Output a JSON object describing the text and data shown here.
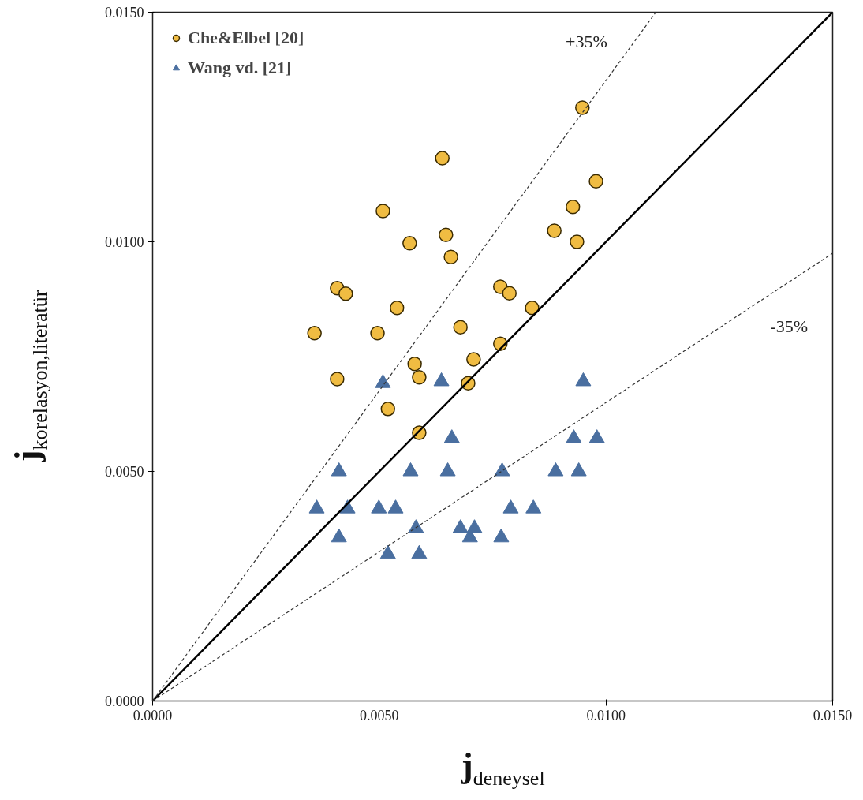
{
  "chart_data": {
    "type": "scatter",
    "xlabel": "j$_{deneysel}$",
    "ylabel": "j$_{korelasyon,literatür}$",
    "xlim": [
      0,
      0.015
    ],
    "ylim": [
      0,
      0.015
    ],
    "xticks": [
      {
        "value": 0,
        "label": "0.0000"
      },
      {
        "value": 0.005,
        "label": "0.0050"
      },
      {
        "value": 0.01,
        "label": "0.0100"
      },
      {
        "value": 0.015,
        "label": "0.0150"
      }
    ],
    "yticks": [
      {
        "value": 0,
        "label": "0.0000"
      },
      {
        "value": 0.005,
        "label": "0.0050"
      },
      {
        "value": 0.01,
        "label": "0.0100"
      },
      {
        "value": 0.015,
        "label": "0.0150"
      }
    ],
    "grid": false,
    "legend": "top left",
    "series": [
      {
        "name": "Che&Elbel [20]",
        "color": "#f0bc42",
        "marker": "circle",
        "x": [
          0.00357,
          0.00407,
          0.00426,
          0.00407,
          0.00508,
          0.00496,
          0.00539,
          0.00567,
          0.00519,
          0.00578,
          0.00588,
          0.00588,
          0.00639,
          0.00647,
          0.00658,
          0.00679,
          0.00708,
          0.00696,
          0.00767,
          0.00787,
          0.00837,
          0.00767,
          0.00886,
          0.00927,
          0.00936,
          0.00978,
          0.00948
        ],
        "values": [
          0.00801,
          0.00899,
          0.00887,
          0.00701,
          0.01067,
          0.00801,
          0.00856,
          0.00997,
          0.00636,
          0.00734,
          0.00705,
          0.00584,
          0.01182,
          0.01015,
          0.00967,
          0.00814,
          0.00744,
          0.00692,
          0.00902,
          0.00888,
          0.00856,
          0.00778,
          0.01024,
          0.01076,
          0.01,
          0.01132,
          0.01292
        ]
      },
      {
        "name": "Wang vd. [21]",
        "color": "#4a6fa0",
        "marker": "triangle",
        "x": [
          0.00362,
          0.00411,
          0.0043,
          0.00411,
          0.00508,
          0.00499,
          0.00536,
          0.00519,
          0.00569,
          0.00581,
          0.00588,
          0.00637,
          0.0066,
          0.00651,
          0.00679,
          0.007,
          0.0071,
          0.00771,
          0.00769,
          0.0079,
          0.0084,
          0.00889,
          0.00929,
          0.0094,
          0.0095,
          0.0098
        ],
        "values": [
          0.00419,
          0.005,
          0.00419,
          0.00356,
          0.00692,
          0.00419,
          0.00419,
          0.0032,
          0.005,
          0.00376,
          0.0032,
          0.00696,
          0.00572,
          0.005,
          0.00376,
          0.00356,
          0.00376,
          0.005,
          0.00356,
          0.00419,
          0.00419,
          0.005,
          0.00572,
          0.005,
          0.00696,
          0.00572
        ]
      },
      {
        "type": "line",
        "color": "#000000",
        "line_style": "solid",
        "marker": "none",
        "x": [
          0,
          0.015
        ],
        "values": [
          0,
          0.015
        ]
      },
      {
        "type": "line",
        "color": "#333333",
        "line_style": "dashed",
        "marker": "none",
        "x": [
          0,
          0.0111
        ],
        "values": [
          0,
          0.015
        ]
      },
      {
        "type": "line",
        "color": "#333333",
        "line_style": "dashed",
        "marker": "none",
        "x": [
          0,
          0.015
        ],
        "values": [
          0,
          0.00975
        ]
      }
    ],
    "annotations": [
      "+35%",
      "-35%"
    ]
  }
}
